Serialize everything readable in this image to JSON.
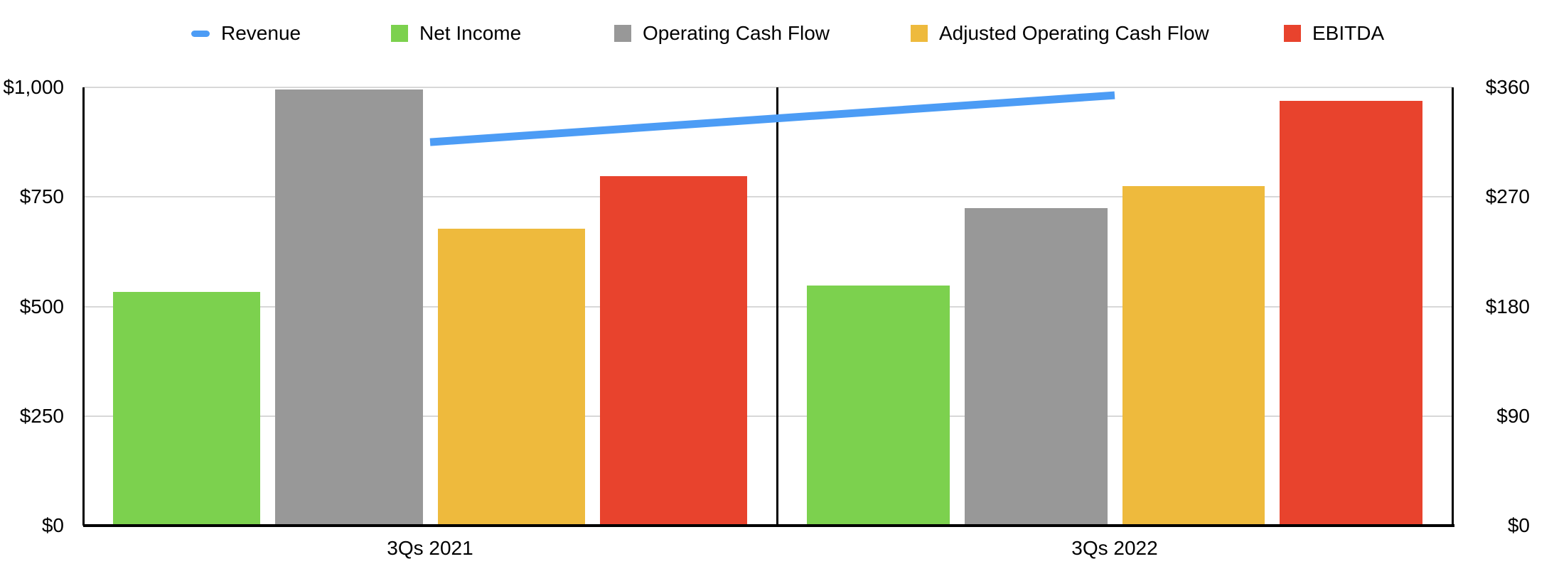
{
  "chart_data": {
    "type": "combo-bar-line",
    "title": "",
    "categories": [
      "3Qs 2021",
      "3Qs 2022"
    ],
    "series": [
      {
        "name": "Revenue",
        "render": "line",
        "axis": "left",
        "color": "#4c9cf5",
        "values": [
          875,
          982
        ]
      },
      {
        "name": "Net Income",
        "render": "bar",
        "axis": "right",
        "color": "#7cd14e",
        "values": [
          192,
          197
        ]
      },
      {
        "name": "Operating Cash Flow",
        "render": "bar",
        "axis": "right",
        "color": "#989898",
        "values": [
          358,
          261
        ]
      },
      {
        "name": "Adjusted Operating Cash Flow",
        "render": "bar",
        "axis": "right",
        "color": "#eeba3d",
        "values": [
          244,
          279
        ]
      },
      {
        "name": "EBITDA",
        "render": "bar",
        "axis": "right",
        "color": "#e8432d",
        "values": [
          287,
          349
        ]
      }
    ],
    "left_axis": {
      "range": [
        0,
        1000
      ],
      "ticks": [
        {
          "label": "$0",
          "value": 0
        },
        {
          "label": "$250",
          "value": 250
        },
        {
          "label": "$500",
          "value": 500
        },
        {
          "label": "$750",
          "value": 750
        },
        {
          "label": "$1,000",
          "value": 1000
        }
      ]
    },
    "right_axis": {
      "range": [
        0,
        360
      ],
      "ticks": [
        {
          "label": "$0",
          "value": 0
        },
        {
          "label": "$90",
          "value": 90
        },
        {
          "label": "$180",
          "value": 180
        },
        {
          "label": "$270",
          "value": 270
        },
        {
          "label": "$360",
          "value": 360
        }
      ]
    },
    "grid": true,
    "legend_position": "top",
    "colors": {
      "gridline": "#d8d8d8",
      "axis": "#000000",
      "background": "#ffffff",
      "text": "#000000"
    }
  }
}
